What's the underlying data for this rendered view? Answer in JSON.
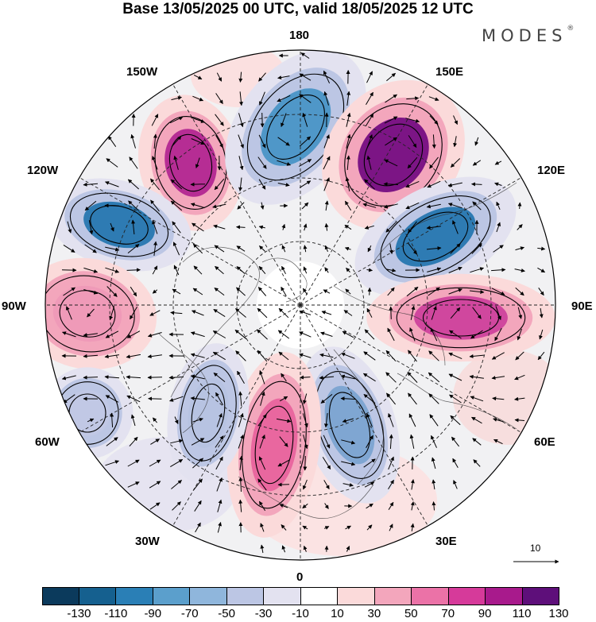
{
  "title": "Base 13/05/2025 00 UTC, valid 18/05/2025 12 UTC",
  "brand": "MODES",
  "brand_mark": "®",
  "longitude_labels": {
    "top": "180",
    "bottom": "0",
    "left": "90W",
    "right": "90E",
    "upper_left_1": "150W",
    "upper_left_2": "120W",
    "upper_right_1": "150E",
    "upper_right_2": "120E",
    "lower_left_1": "60W",
    "lower_left_2": "30W",
    "lower_right_1": "60E",
    "lower_right_2": "30E"
  },
  "reference_vector": {
    "label": "10"
  },
  "colorbar": {
    "colors": [
      "#0b3a5c",
      "#15608f",
      "#2a7fb6",
      "#5b9fcc",
      "#8fb6dc",
      "#bcc6e4",
      "#e3e2f0",
      "#ffffff",
      "#fbdada",
      "#f3a6bc",
      "#eb72a7",
      "#d63a9a",
      "#a81a8c",
      "#5e0f7a"
    ],
    "tick_labels": [
      "-130",
      "-110",
      "-90",
      "-70",
      "-50",
      "-30",
      "-10",
      "10",
      "30",
      "50",
      "70",
      "90",
      "110",
      "130"
    ]
  },
  "anomaly_features": [
    {
      "name": "pos-150w",
      "sign": "positive",
      "peak_class": 110,
      "color": "#b62d94"
    },
    {
      "name": "neg-180",
      "sign": "negative",
      "peak_class": -70,
      "color": "#4f97c8"
    },
    {
      "name": "pos-150e",
      "sign": "positive",
      "peak_class": 130,
      "color": "#7c1585"
    },
    {
      "name": "neg-120w",
      "sign": "negative",
      "peak_class": -90,
      "color": "#2e7bb3"
    },
    {
      "name": "neg-120e",
      "sign": "negative",
      "peak_class": -90,
      "color": "#2e7bb3"
    },
    {
      "name": "pos-90e",
      "sign": "positive",
      "peak_class": 90,
      "color": "#d0479e"
    },
    {
      "name": "pos-90w",
      "sign": "positive",
      "peak_class": 50,
      "color": "#ef9ab8"
    },
    {
      "name": "neg-60e",
      "sign": "negative",
      "peak_class": -50,
      "color": "#7fa6d2"
    },
    {
      "name": "pos-0",
      "sign": "positive",
      "peak_class": 70,
      "color": "#e9679f"
    },
    {
      "name": "neg-30w",
      "sign": "negative",
      "peak_class": -30,
      "color": "#b7c3e2"
    },
    {
      "name": "neg-60w",
      "sign": "negative",
      "peak_class": -30,
      "color": "#c1c8e5"
    }
  ]
}
